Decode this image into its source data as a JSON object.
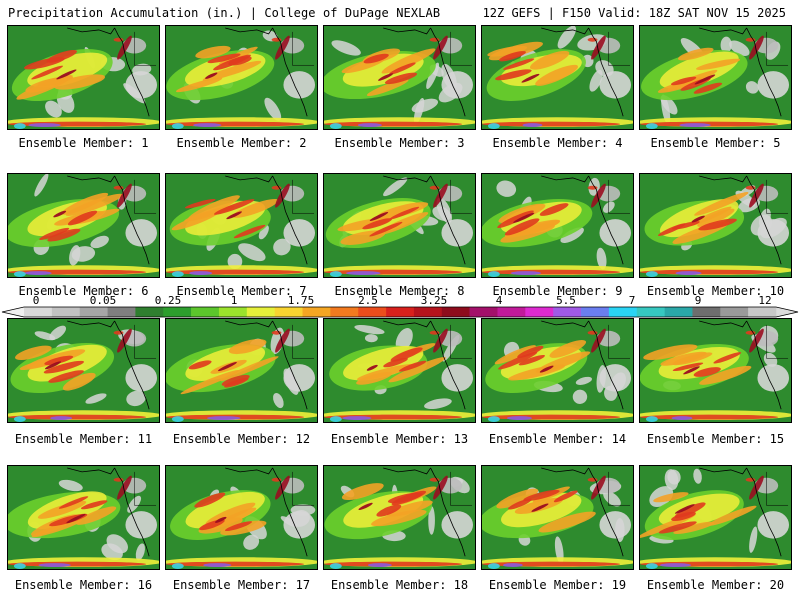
{
  "header": {
    "left_title": "Precipitation Accumulation (in.) | College of DuPage NEXLAB",
    "right_title": "12Z GEFS | F150 Valid: 18Z SAT NOV 15 2025"
  },
  "members": [
    {
      "label": "Ensemble Member: 1"
    },
    {
      "label": "Ensemble Member: 2"
    },
    {
      "label": "Ensemble Member: 3"
    },
    {
      "label": "Ensemble Member: 4"
    },
    {
      "label": "Ensemble Member: 5"
    },
    {
      "label": "Ensemble Member: 6"
    },
    {
      "label": "Ensemble Member: 7"
    },
    {
      "label": "Ensemble Member: 8"
    },
    {
      "label": "Ensemble Member: 9"
    },
    {
      "label": "Ensemble Member: 10"
    },
    {
      "label": "Ensemble Member: 11"
    },
    {
      "label": "Ensemble Member: 12"
    },
    {
      "label": "Ensemble Member: 13"
    },
    {
      "label": "Ensemble Member: 14"
    },
    {
      "label": "Ensemble Member: 15"
    },
    {
      "label": "Ensemble Member: 16"
    },
    {
      "label": "Ensemble Member: 17"
    },
    {
      "label": "Ensemble Member: 18"
    },
    {
      "label": "Ensemble Member: 19"
    },
    {
      "label": "Ensemble Member: 20"
    }
  ],
  "legend": {
    "tick_labels": [
      "0",
      "0.05",
      "0.25",
      "1",
      "1.75",
      "2.5",
      "3.25",
      "4",
      "5.5",
      "7",
      "9",
      "12"
    ],
    "colors": [
      "#d9d9d9",
      "#c2c2c2",
      "#a6a6a6",
      "#7f7f7f",
      "#2f7f2f",
      "#2d9e2d",
      "#5cc62c",
      "#9be22c",
      "#e6f03a",
      "#f8d430",
      "#f5a623",
      "#f27a1f",
      "#ec4d1c",
      "#d8201c",
      "#b5131c",
      "#8e0c1c",
      "#a3106a",
      "#c11a9a",
      "#dd2ad0",
      "#a05ae6",
      "#6a7ef0",
      "#2ad4f4",
      "#36c8c0",
      "#2aa8a8",
      "#6e6e6e",
      "#9a9a9a",
      "#c8c8c8"
    ]
  },
  "map_colors": {
    "ocean": "#8a8a8a",
    "light": "#d6d6d6",
    "green": "#2e8b2e",
    "lime": "#6ccf2c",
    "yellow": "#f1ef3a",
    "orange": "#f3a226",
    "red": "#e03a1e",
    "darkred": "#9a0d20",
    "magenta": "#c01aa0",
    "purple": "#8a5ae0",
    "cyan": "#3ad6f0",
    "coast": "#000000"
  }
}
